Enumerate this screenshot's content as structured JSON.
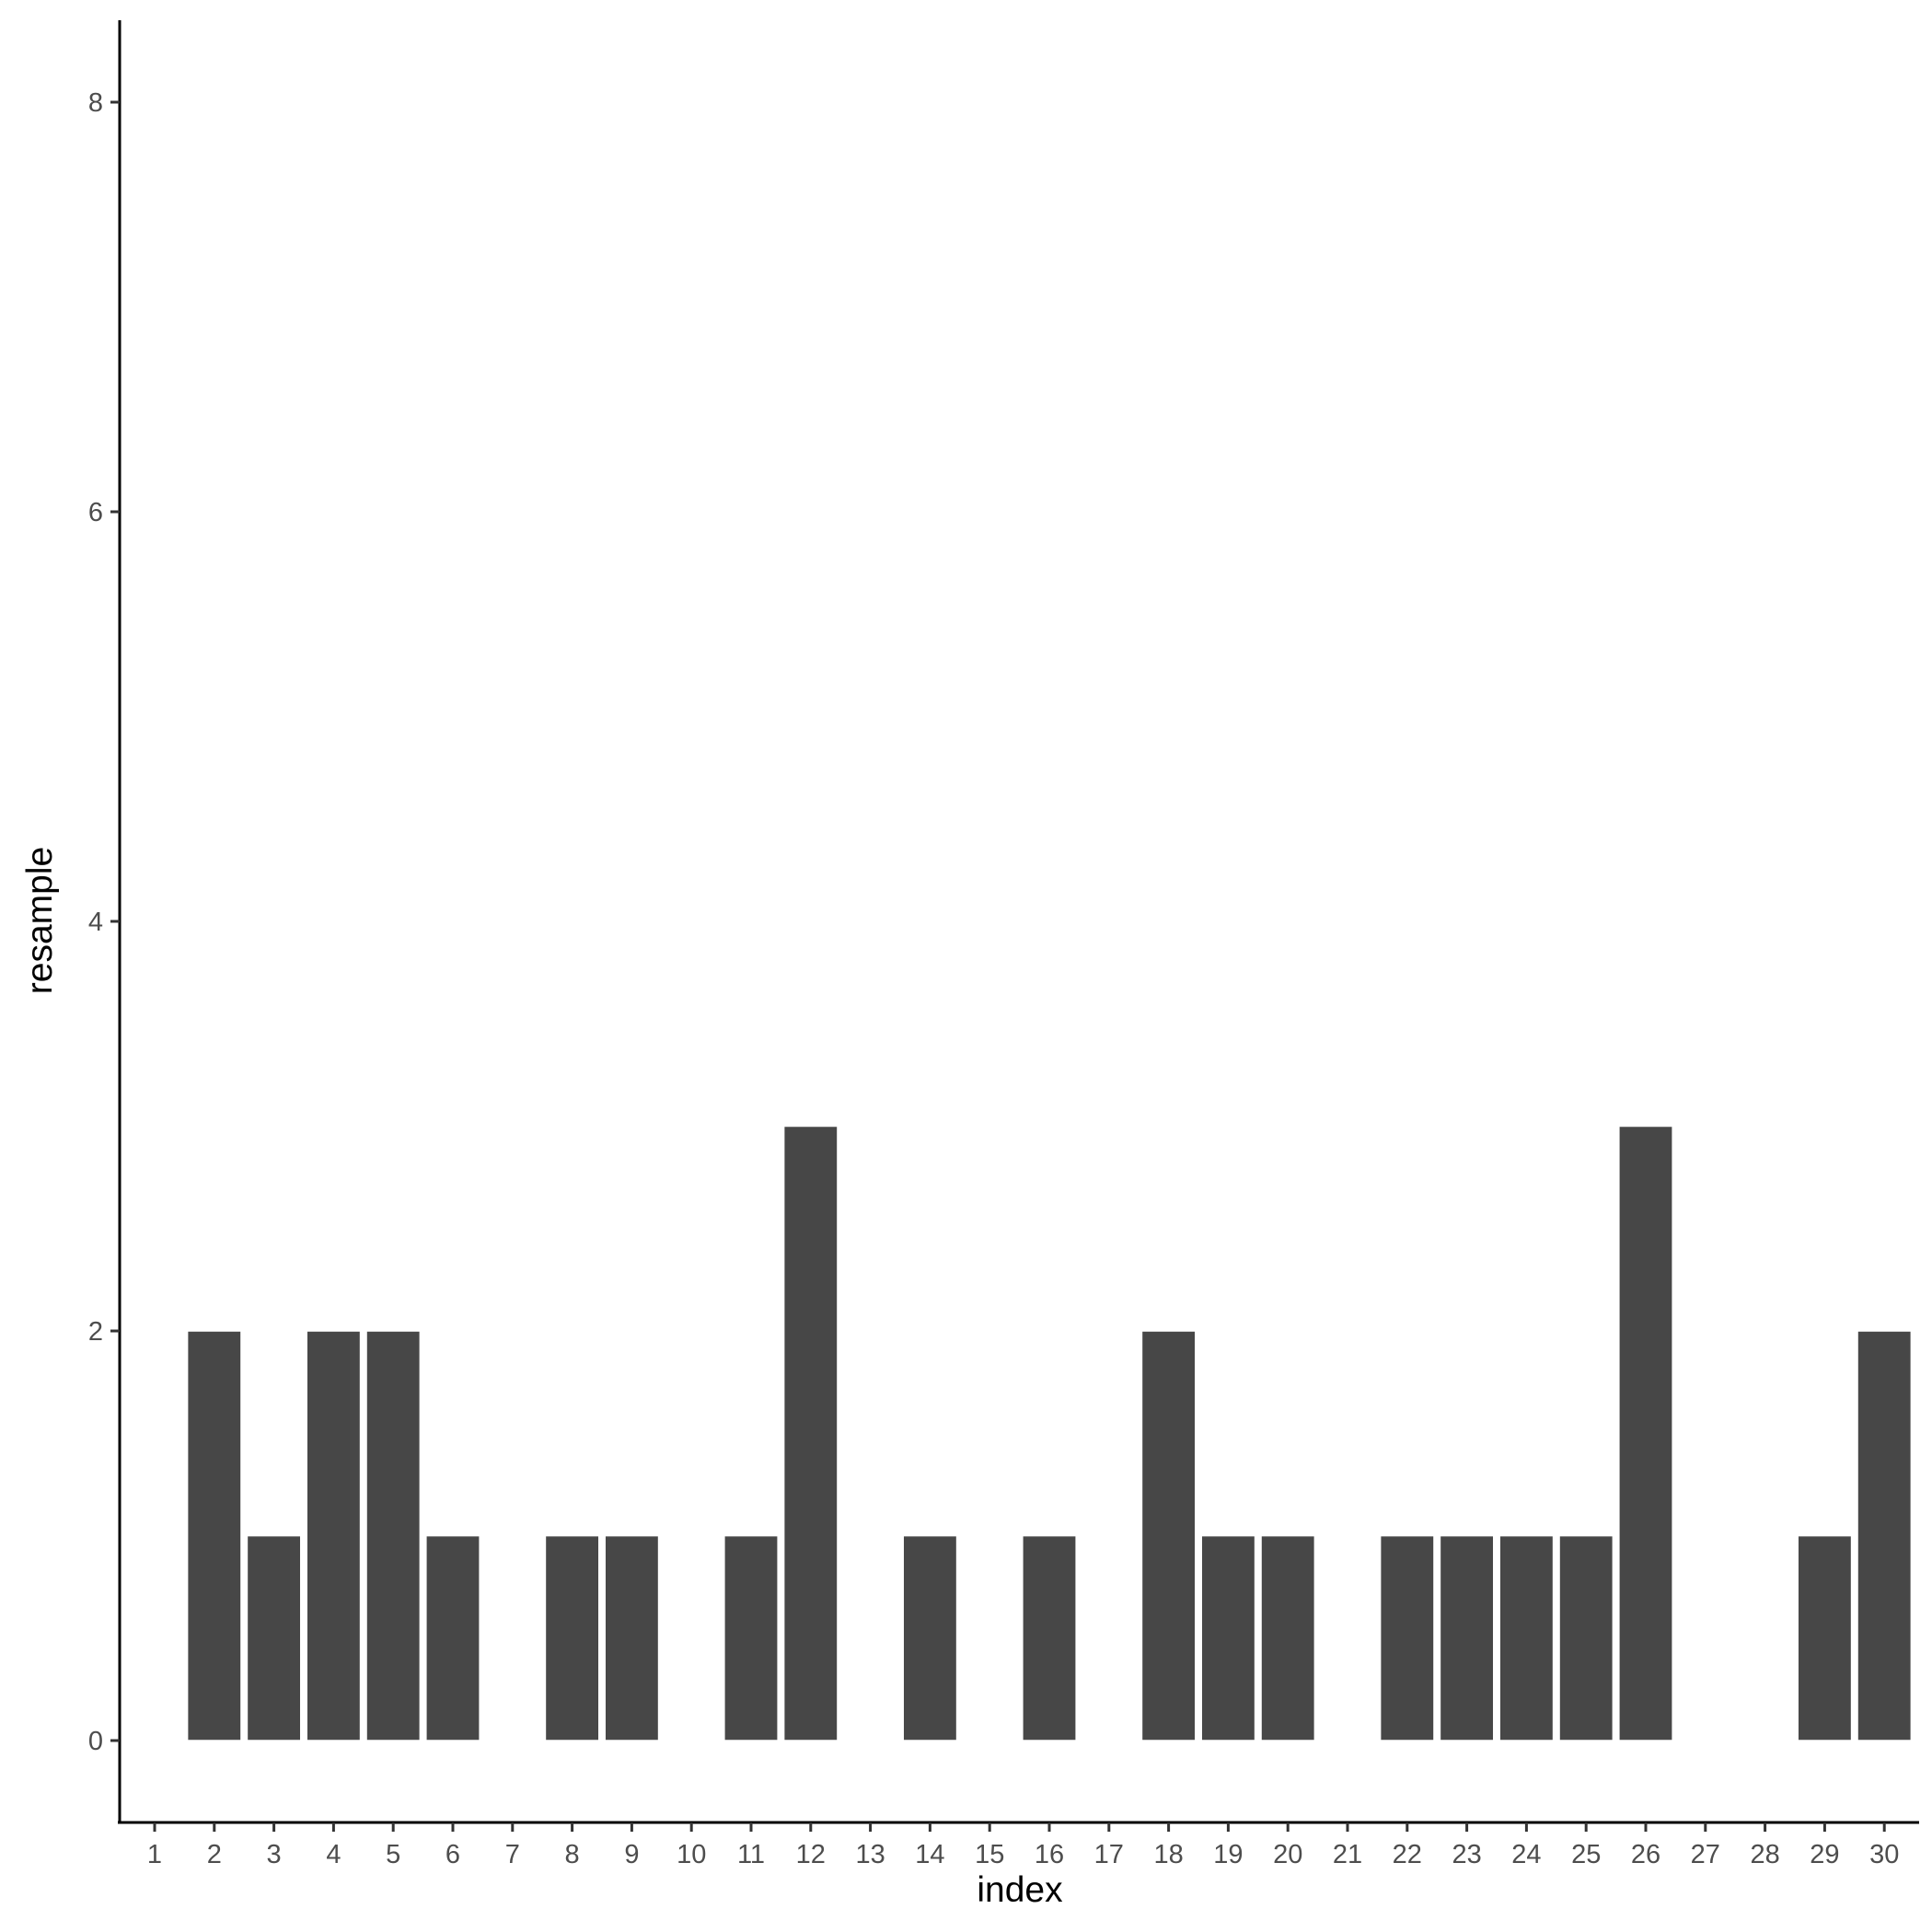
{
  "chart_data": {
    "type": "bar",
    "xlabel": "index",
    "ylabel": "resample",
    "categories": [
      "1",
      "2",
      "3",
      "4",
      "5",
      "6",
      "7",
      "8",
      "9",
      "10",
      "11",
      "12",
      "13",
      "14",
      "15",
      "16",
      "17",
      "18",
      "19",
      "20",
      "21",
      "22",
      "23",
      "24",
      "25",
      "26",
      "27",
      "28",
      "29",
      "30"
    ],
    "values": [
      0,
      2,
      1,
      2,
      2,
      1,
      0,
      1,
      1,
      0,
      1,
      3,
      0,
      1,
      0,
      1,
      0,
      2,
      1,
      1,
      0,
      1,
      1,
      1,
      1,
      3,
      0,
      0,
      1,
      2
    ],
    "y_ticks": [
      "0",
      "2",
      "4",
      "6",
      "8"
    ],
    "ylim": [
      -0.4,
      8.4
    ],
    "grid": false,
    "legend": "none",
    "colors": {
      "bar": "#474747",
      "bar_outline": "#ffffff",
      "axis": "#000000",
      "tick_label": "#4d4d4d"
    }
  }
}
